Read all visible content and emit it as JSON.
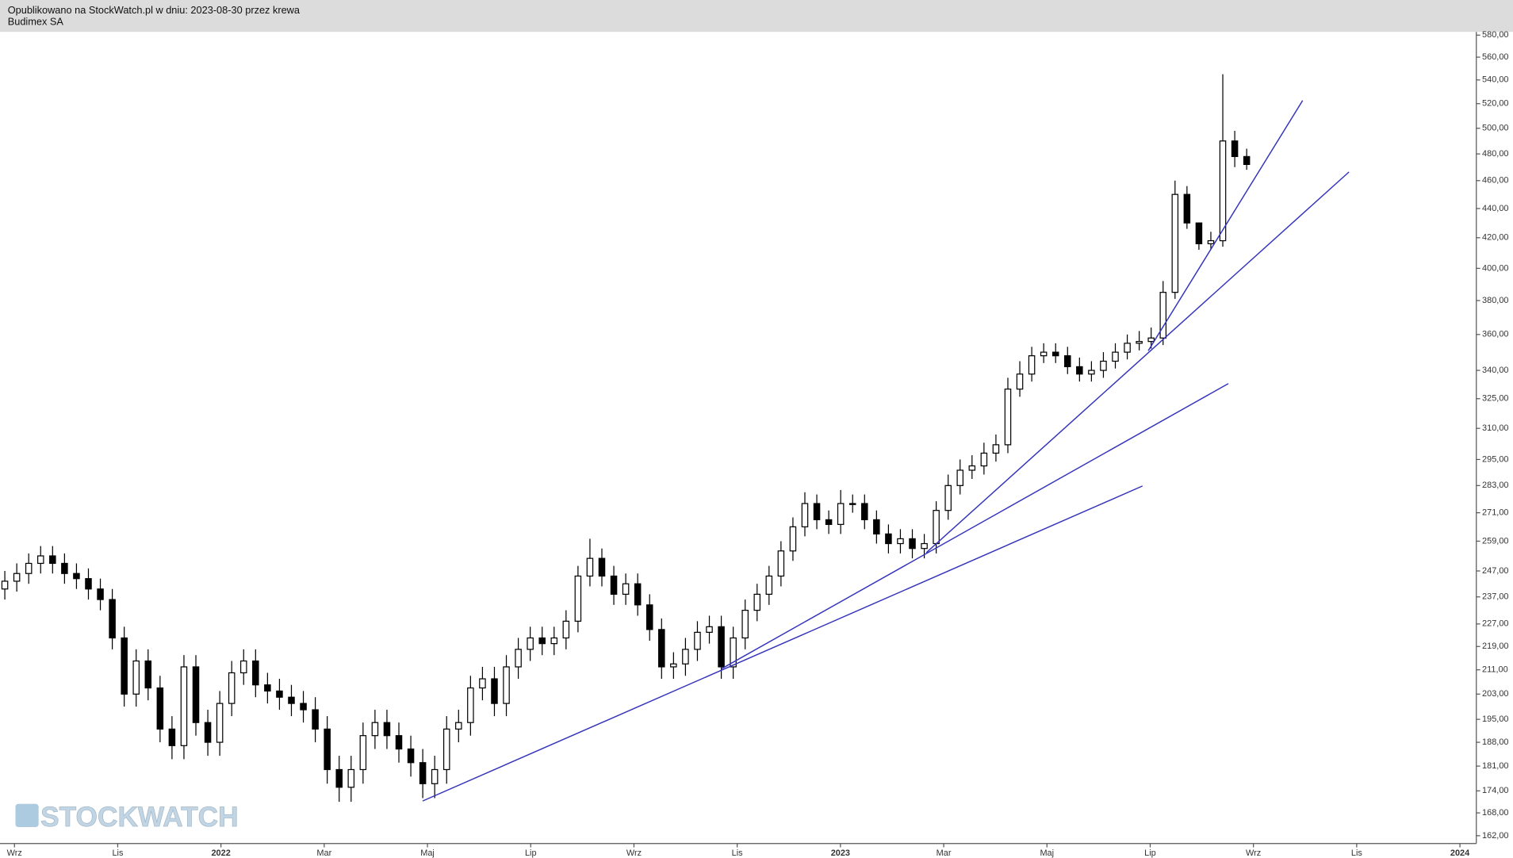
{
  "chart_data": {
    "type": "candlestick",
    "header": "Opublikowano na StockWatch.pl w dniu: 2023-08-30 przez krewa",
    "title": "Budimex SA",
    "watermark": "STOCKWATCH",
    "log_scale": true,
    "color": "#000000",
    "trendline_color": "#3333bb",
    "ylim": [
      160,
      583
    ],
    "yticks": [
      {
        "value": 162,
        "label": "162,00"
      },
      {
        "value": 168,
        "label": "168,00"
      },
      {
        "value": 174,
        "label": "174,00"
      },
      {
        "value": 181,
        "label": "181,00"
      },
      {
        "value": 188,
        "label": "188,00"
      },
      {
        "value": 195,
        "label": "195,00"
      },
      {
        "value": 203,
        "label": "203,00"
      },
      {
        "value": 211,
        "label": "211,00"
      },
      {
        "value": 219,
        "label": "219,00"
      },
      {
        "value": 227,
        "label": "227,00"
      },
      {
        "value": 237,
        "label": "237,00"
      },
      {
        "value": 247,
        "label": "247,00"
      },
      {
        "value": 259,
        "label": "259,00"
      },
      {
        "value": 271,
        "label": "271,00"
      },
      {
        "value": 283,
        "label": "283,00"
      },
      {
        "value": 295,
        "label": "295,00"
      },
      {
        "value": 310,
        "label": "310,00"
      },
      {
        "value": 325,
        "label": "325,00"
      },
      {
        "value": 340,
        "label": "340,00"
      },
      {
        "value": 360,
        "label": "360,00"
      },
      {
        "value": 380,
        "label": "380,00"
      },
      {
        "value": 400,
        "label": "400,00"
      },
      {
        "value": 420,
        "label": "420,00"
      },
      {
        "value": 440,
        "label": "440,00"
      },
      {
        "value": 460,
        "label": "460,00"
      },
      {
        "value": 480,
        "label": "480,00"
      },
      {
        "value": 500,
        "label": "500,00"
      },
      {
        "value": 520,
        "label": "520,00"
      },
      {
        "value": 540,
        "label": "540,00"
      },
      {
        "value": 560,
        "label": "560,00"
      },
      {
        "value": 580,
        "label": "580,00"
      }
    ],
    "xticks": [
      "Wrz",
      "Lis",
      "2022",
      "Mar",
      "Maj",
      "Lip",
      "Wrz",
      "Lis",
      "2023",
      "Mar",
      "Maj",
      "Lip",
      "Wrz",
      "Lis",
      "2024"
    ],
    "open": [
      240,
      243,
      246,
      250,
      253,
      250,
      246,
      244,
      240,
      236,
      222,
      203,
      214,
      205,
      192,
      187,
      212,
      194,
      188,
      200,
      210,
      214,
      206,
      204,
      202,
      200,
      198,
      192,
      180,
      175,
      180,
      190,
      194,
      190,
      186,
      182,
      176,
      180,
      192,
      194,
      205,
      208,
      200,
      212,
      218,
      222,
      220,
      222,
      228,
      245,
      252,
      245,
      238,
      242,
      234,
      225,
      212,
      213,
      218,
      224,
      226,
      212,
      222,
      232,
      238,
      245,
      255,
      265,
      275,
      268,
      266,
      275,
      275,
      268,
      262,
      258,
      260,
      256,
      258,
      272,
      283,
      290,
      292,
      298,
      302,
      330,
      338,
      348,
      350,
      348,
      342,
      338,
      340,
      345,
      350,
      355,
      356,
      358,
      385,
      450,
      430,
      416,
      418,
      490,
      478
    ],
    "high": [
      247,
      250,
      254,
      257,
      257,
      254,
      250,
      248,
      244,
      240,
      226,
      218,
      218,
      209,
      196,
      216,
      216,
      198,
      204,
      214,
      218,
      218,
      210,
      208,
      206,
      204,
      202,
      196,
      184,
      184,
      194,
      198,
      198,
      194,
      190,
      186,
      184,
      196,
      198,
      209,
      212,
      212,
      216,
      222,
      226,
      226,
      226,
      232,
      249,
      260,
      256,
      249,
      246,
      246,
      238,
      229,
      217,
      222,
      228,
      230,
      230,
      226,
      236,
      242,
      249,
      259,
      269,
      280,
      279,
      272,
      281,
      279,
      279,
      272,
      266,
      264,
      264,
      262,
      276,
      288,
      295,
      297,
      303,
      307,
      336,
      345,
      353,
      355,
      355,
      353,
      347,
      345,
      350,
      355,
      360,
      362,
      364,
      392,
      460,
      456,
      428,
      424,
      545,
      498,
      484
    ],
    "low": [
      236,
      239,
      242,
      246,
      246,
      242,
      240,
      236,
      232,
      218,
      199,
      199,
      201,
      188,
      183,
      183,
      190,
      184,
      184,
      196,
      206,
      202,
      200,
      198,
      196,
      194,
      188,
      176,
      171,
      171,
      176,
      186,
      186,
      182,
      178,
      172,
      172,
      176,
      188,
      190,
      201,
      196,
      196,
      208,
      214,
      216,
      216,
      218,
      224,
      241,
      241,
      234,
      234,
      230,
      221,
      208,
      208,
      209,
      214,
      220,
      208,
      208,
      218,
      228,
      234,
      241,
      251,
      261,
      264,
      262,
      262,
      271,
      264,
      258,
      254,
      254,
      252,
      252,
      254,
      268,
      279,
      286,
      288,
      294,
      298,
      326,
      334,
      344,
      344,
      338,
      334,
      334,
      336,
      341,
      346,
      351,
      352,
      354,
      381,
      426,
      412,
      412,
      414,
      470,
      468
    ],
    "close": [
      243,
      246,
      250,
      253,
      250,
      246,
      244,
      240,
      236,
      222,
      203,
      214,
      205,
      192,
      187,
      212,
      194,
      188,
      200,
      210,
      214,
      206,
      204,
      202,
      200,
      198,
      192,
      180,
      175,
      180,
      190,
      194,
      190,
      186,
      182,
      176,
      180,
      192,
      194,
      205,
      208,
      200,
      212,
      218,
      222,
      220,
      222,
      228,
      245,
      252,
      245,
      238,
      242,
      234,
      225,
      212,
      213,
      218,
      224,
      226,
      212,
      222,
      232,
      238,
      245,
      255,
      265,
      275,
      268,
      266,
      275,
      275,
      268,
      262,
      258,
      260,
      256,
      258,
      272,
      283,
      290,
      292,
      298,
      302,
      330,
      338,
      348,
      350,
      348,
      342,
      338,
      340,
      345,
      350,
      355,
      356,
      358,
      385,
      450,
      430,
      416,
      418,
      490,
      478,
      472
    ]
  }
}
